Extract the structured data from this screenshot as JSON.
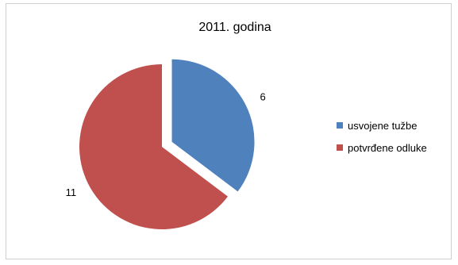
{
  "chart_data": {
    "type": "pie",
    "title": "2011. godina",
    "legend_position": "right",
    "slices": [
      {
        "name": "usvojene tužbe",
        "value": 6,
        "color": "#4f81bd",
        "exploded": true
      },
      {
        "name": "potvrđene odluke",
        "value": 11,
        "color": "#c0504d",
        "exploded": false
      }
    ]
  }
}
